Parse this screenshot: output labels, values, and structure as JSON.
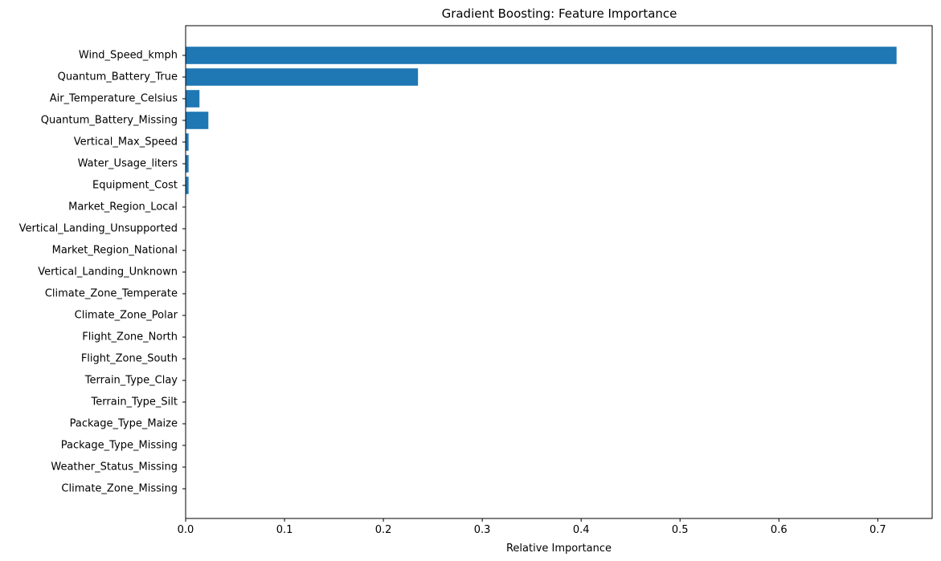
{
  "chart_data": {
    "type": "bar",
    "orientation": "horizontal",
    "title": "Gradient Boosting: Feature Importance",
    "xlabel": "Relative Importance",
    "ylabel": "",
    "xlim": [
      0,
      0.755
    ],
    "xticks": [
      0,
      0.1,
      0.2,
      0.3,
      0.4,
      0.5,
      0.6,
      0.7
    ],
    "xtick_labels": [
      "0.0",
      "0.1",
      "0.2",
      "0.3",
      "0.4",
      "0.5",
      "0.6",
      "0.7"
    ],
    "grid": false,
    "bar_color": "#1f77b4",
    "categories": [
      "Wind_Speed_kmph",
      "Quantum_Battery_True",
      "Air_Temperature_Celsius",
      "Quantum_Battery_Missing",
      "Vertical_Max_Speed",
      "Water_Usage_liters",
      "Equipment_Cost",
      "Market_Region_Local",
      "Vertical_Landing_Unsupported",
      "Market_Region_National",
      "Vertical_Landing_Unknown",
      "Climate_Zone_Temperate",
      "Climate_Zone_Polar",
      "Flight_Zone_North",
      "Flight_Zone_South",
      "Terrain_Type_Clay",
      "Terrain_Type_Silt",
      "Package_Type_Maize",
      "Package_Type_Missing",
      "Weather_Status_Missing",
      "Climate_Zone_Missing"
    ],
    "values": [
      0.719,
      0.235,
      0.014,
      0.023,
      0.003,
      0.003,
      0.003,
      0.0,
      0.0,
      0.0,
      0.0,
      0.0,
      0.0,
      0.0,
      0.0,
      0.0,
      0.0,
      0.0,
      0.0,
      0.0,
      0.0
    ]
  }
}
